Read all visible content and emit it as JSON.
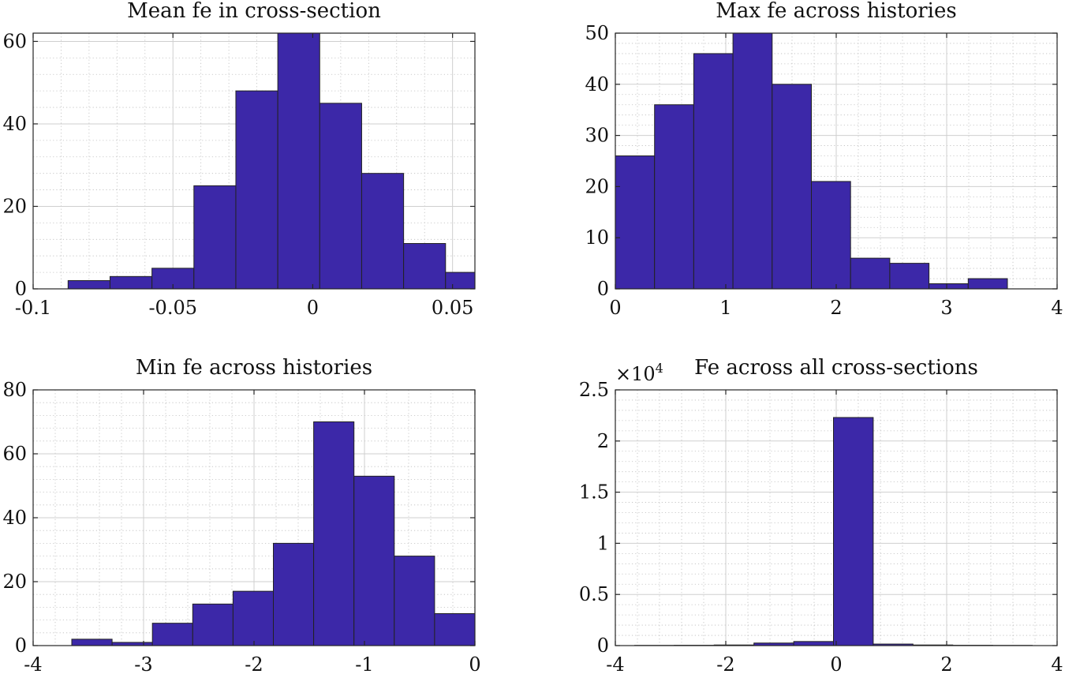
{
  "chart_data": [
    {
      "type": "bar",
      "title": "Mean fe in cross-section",
      "xlim": [
        -0.1,
        0.058
      ],
      "ylim": [
        0,
        62
      ],
      "xticks": [
        -0.1,
        -0.05,
        0,
        0.05
      ],
      "xtick_labels": [
        "-0.1",
        "-0.05",
        "0",
        "0.05"
      ],
      "yticks": [
        0,
        20,
        40,
        60
      ],
      "ytick_labels": [
        "0",
        "20",
        "40",
        "60"
      ],
      "grid": true,
      "bin_edges": [
        -0.0875,
        -0.0725,
        -0.0575,
        -0.0425,
        -0.0275,
        -0.0125,
        0.0025,
        0.0175,
        0.0325,
        0.0475,
        0.058
      ],
      "values": [
        2,
        3,
        5,
        25,
        48,
        62,
        45,
        28,
        11,
        4
      ]
    },
    {
      "type": "bar",
      "title": "Max fe across histories",
      "xlim": [
        0,
        4
      ],
      "ylim": [
        0,
        50
      ],
      "xticks": [
        0,
        1,
        2,
        3,
        4
      ],
      "xtick_labels": [
        "0",
        "1",
        "2",
        "3",
        "4"
      ],
      "yticks": [
        0,
        10,
        20,
        30,
        40,
        50
      ],
      "ytick_labels": [
        "0",
        "10",
        "20",
        "30",
        "40",
        "50"
      ],
      "grid": true,
      "bin_edges": [
        0,
        0.355,
        0.71,
        1.065,
        1.42,
        1.775,
        2.13,
        2.485,
        2.84,
        3.195,
        3.55
      ],
      "values": [
        26,
        36,
        46,
        50,
        40,
        21,
        6,
        5,
        1,
        2
      ]
    },
    {
      "type": "bar",
      "title": "Min fe across histories",
      "xlim": [
        -4,
        0
      ],
      "ylim": [
        0,
        80
      ],
      "xticks": [
        -4,
        -3,
        -2,
        -1,
        0
      ],
      "xtick_labels": [
        "-4",
        "-3",
        "-2",
        "-1",
        "0"
      ],
      "yticks": [
        0,
        20,
        40,
        60,
        80
      ],
      "ytick_labels": [
        "0",
        "20",
        "40",
        "60",
        "80"
      ],
      "grid": true,
      "bin_edges": [
        -3.65,
        -3.285,
        -2.92,
        -2.555,
        -2.19,
        -1.825,
        -1.46,
        -1.095,
        -0.73,
        -0.365,
        0
      ],
      "values": [
        2,
        1,
        7,
        13,
        17,
        32,
        70,
        53,
        28,
        10
      ]
    },
    {
      "type": "bar",
      "title": "Fe across all cross-sections",
      "xlim": [
        -4,
        4
      ],
      "ylim": [
        0,
        25000
      ],
      "xticks": [
        -4,
        -2,
        0,
        2,
        4
      ],
      "xtick_labels": [
        "-4",
        "-2",
        "0",
        "2",
        "4"
      ],
      "yticks": [
        0,
        5000,
        10000,
        15000,
        20000,
        25000
      ],
      "ytick_labels": [
        "0",
        "0.5",
        "1",
        "1.5",
        "2",
        "2.5"
      ],
      "y_exponent_base": "×10",
      "y_exponent_power": "4",
      "grid": true,
      "bin_edges": [
        -3.65,
        -2.93,
        -2.21,
        -1.49,
        -0.77,
        -0.05,
        0.67,
        1.39,
        2.11,
        2.83,
        3.55
      ],
      "values": [
        20,
        30,
        60,
        250,
        400,
        22300,
        150,
        60,
        30,
        20
      ]
    }
  ]
}
